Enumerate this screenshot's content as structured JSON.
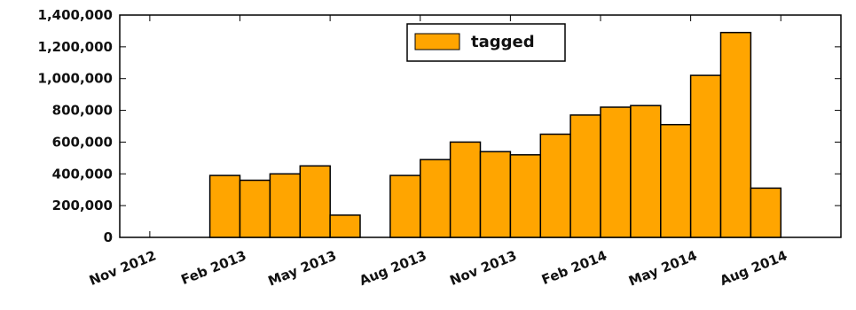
{
  "chart_data": {
    "type": "bar",
    "x_tick_labels": [
      "Nov 2012",
      "Feb 2013",
      "May 2013",
      "Aug 2013",
      "Nov 2013",
      "Feb 2014",
      "May 2014",
      "Aug 2014"
    ],
    "y_tick_labels": [
      "0",
      "200,000",
      "400,000",
      "600,000",
      "800,000",
      "1,000,000",
      "1,200,000",
      "1,400,000"
    ],
    "ylim": [
      0,
      1400000
    ],
    "x_range": [
      "2012-10",
      "2014-10"
    ],
    "bar_width_months": 1,
    "series": [
      {
        "name": "tagged",
        "color": "#FFA500",
        "edge_color": "#000000",
        "points": [
          {
            "month": "2013-01",
            "value": 390000
          },
          {
            "month": "2013-02",
            "value": 360000
          },
          {
            "month": "2013-03",
            "value": 400000
          },
          {
            "month": "2013-04",
            "value": 450000
          },
          {
            "month": "2013-05",
            "value": 140000
          },
          {
            "month": "2013-07",
            "value": 390000
          },
          {
            "month": "2013-08",
            "value": 490000
          },
          {
            "month": "2013-09",
            "value": 600000
          },
          {
            "month": "2013-10",
            "value": 540000
          },
          {
            "month": "2013-11",
            "value": 520000
          },
          {
            "month": "2013-12",
            "value": 650000
          },
          {
            "month": "2014-01",
            "value": 770000
          },
          {
            "month": "2014-02",
            "value": 820000
          },
          {
            "month": "2014-03",
            "value": 830000
          },
          {
            "month": "2014-04",
            "value": 710000
          },
          {
            "month": "2014-05",
            "value": 1020000
          },
          {
            "month": "2014-06",
            "value": 1290000
          },
          {
            "month": "2014-07",
            "value": 310000
          }
        ]
      }
    ],
    "legend_position": "top-center",
    "grid": false
  }
}
